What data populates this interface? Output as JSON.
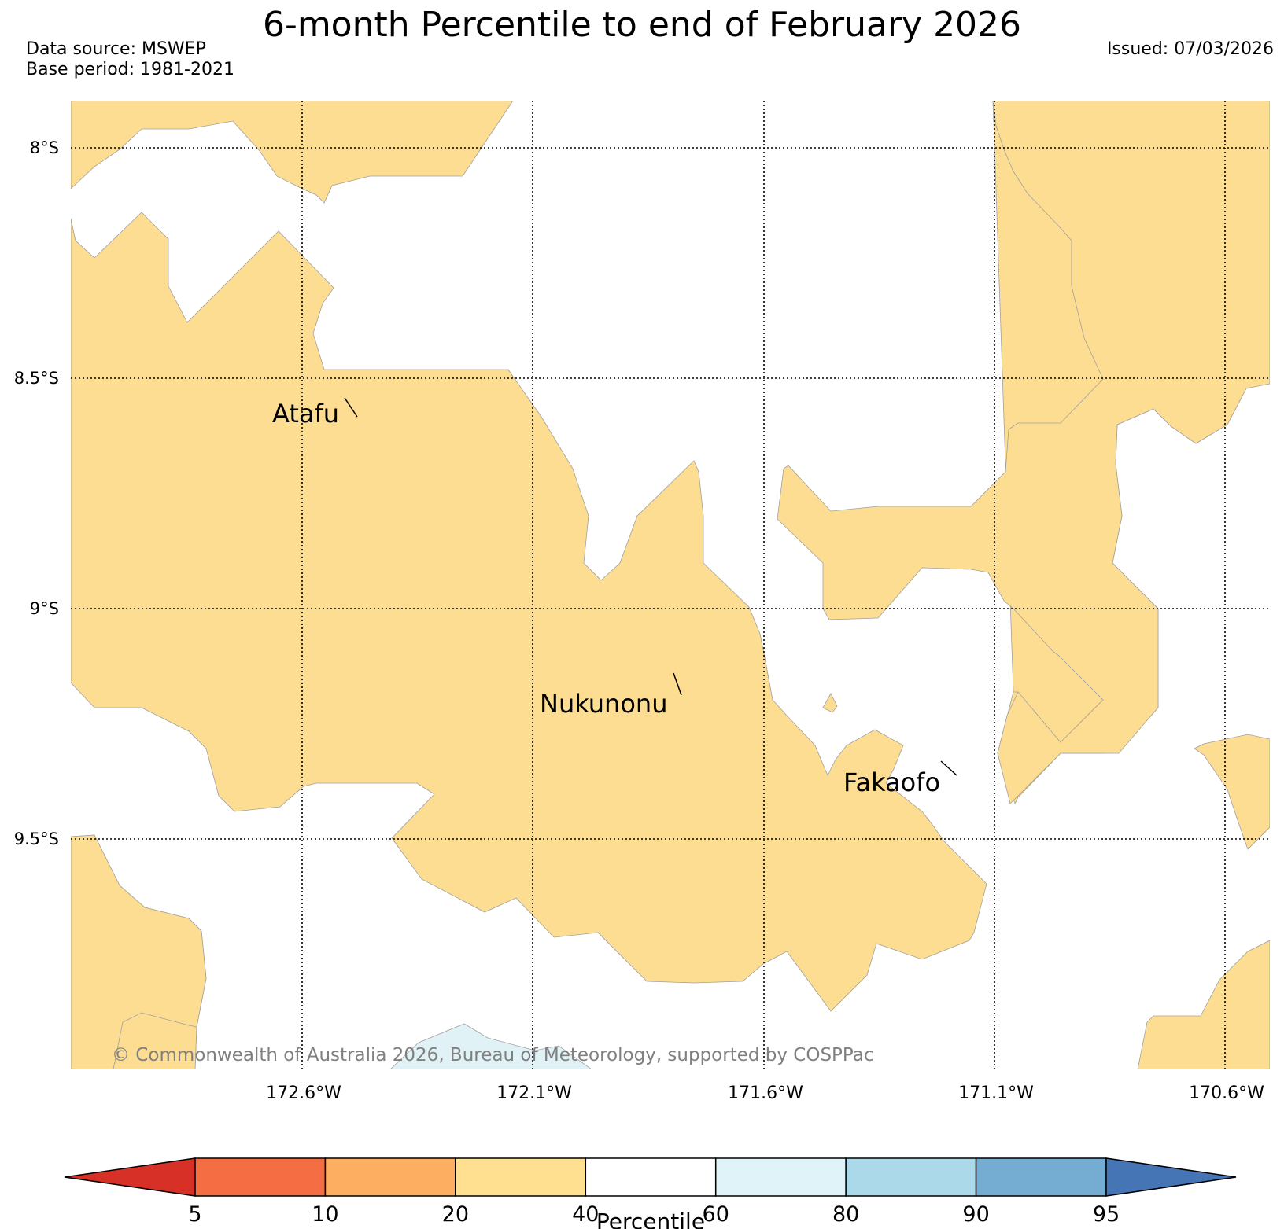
{
  "title": "6-month Percentile to end of February 2026",
  "data_source": "Data source: MSWEP",
  "base_period": "Base period: 1981-2021",
  "issued": "Issued: 07/03/2026",
  "copyright": "© Commonwealth of Australia 2026, Bureau of Meteorology, supported by COSPPac",
  "map": {
    "lat_labels": [
      "8°S",
      "8.5°S",
      "9°S",
      "9.5°S"
    ],
    "lon_labels": [
      "172.6°W",
      "172.1°W",
      "171.6°W",
      "171.1°W",
      "170.6°W"
    ],
    "places": [
      "Atafu",
      "Nukunonu",
      "Fakaofo"
    ],
    "fill_colors": {
      "band_20_40": "#fddd91",
      "band_60_80": "#e1f2f7",
      "outline": "#a0a0a0"
    }
  },
  "colorbar": {
    "label": "Percentile",
    "ticks": [
      "5",
      "10",
      "20",
      "40",
      "60",
      "80",
      "90",
      "95"
    ],
    "colors": [
      "#d73027",
      "#f46d43",
      "#fdae61",
      "#fee090",
      "#ffffff",
      "#e0f3f8",
      "#abd9e9",
      "#74add1",
      "#4575b4"
    ]
  }
}
